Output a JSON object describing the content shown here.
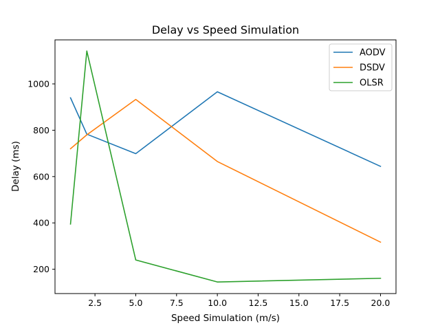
{
  "chart_data": {
    "type": "line",
    "title": "Delay vs Speed Simulation",
    "xlabel": "Speed Simulation  (m/s)",
    "ylabel": "Delay (ms)",
    "x": [
      1,
      2,
      5,
      10,
      20
    ],
    "xlim": [
      0.05,
      20.95
    ],
    "ylim": [
      95,
      1190
    ],
    "xticks": [
      2.5,
      5.0,
      7.5,
      10.0,
      12.5,
      15.0,
      17.5,
      20.0
    ],
    "xtick_labels": [
      "2.5",
      "5.0",
      "7.5",
      "10.0",
      "12.5",
      "15.0",
      "17.5",
      "20.0"
    ],
    "yticks": [
      200,
      400,
      600,
      800,
      1000
    ],
    "ytick_labels": [
      "200",
      "400",
      "600",
      "800",
      "1000"
    ],
    "grid": false,
    "legend_position": "top-right",
    "series": [
      {
        "name": "AODV",
        "color": "#1f77b4",
        "values": [
          940,
          783,
          699,
          966,
          644
        ]
      },
      {
        "name": "DSDV",
        "color": "#ff7f0e",
        "values": [
          720,
          780,
          933,
          665,
          317
        ]
      },
      {
        "name": "OLSR",
        "color": "#2ca02c",
        "values": [
          395,
          1142,
          240,
          145,
          161
        ]
      }
    ]
  }
}
